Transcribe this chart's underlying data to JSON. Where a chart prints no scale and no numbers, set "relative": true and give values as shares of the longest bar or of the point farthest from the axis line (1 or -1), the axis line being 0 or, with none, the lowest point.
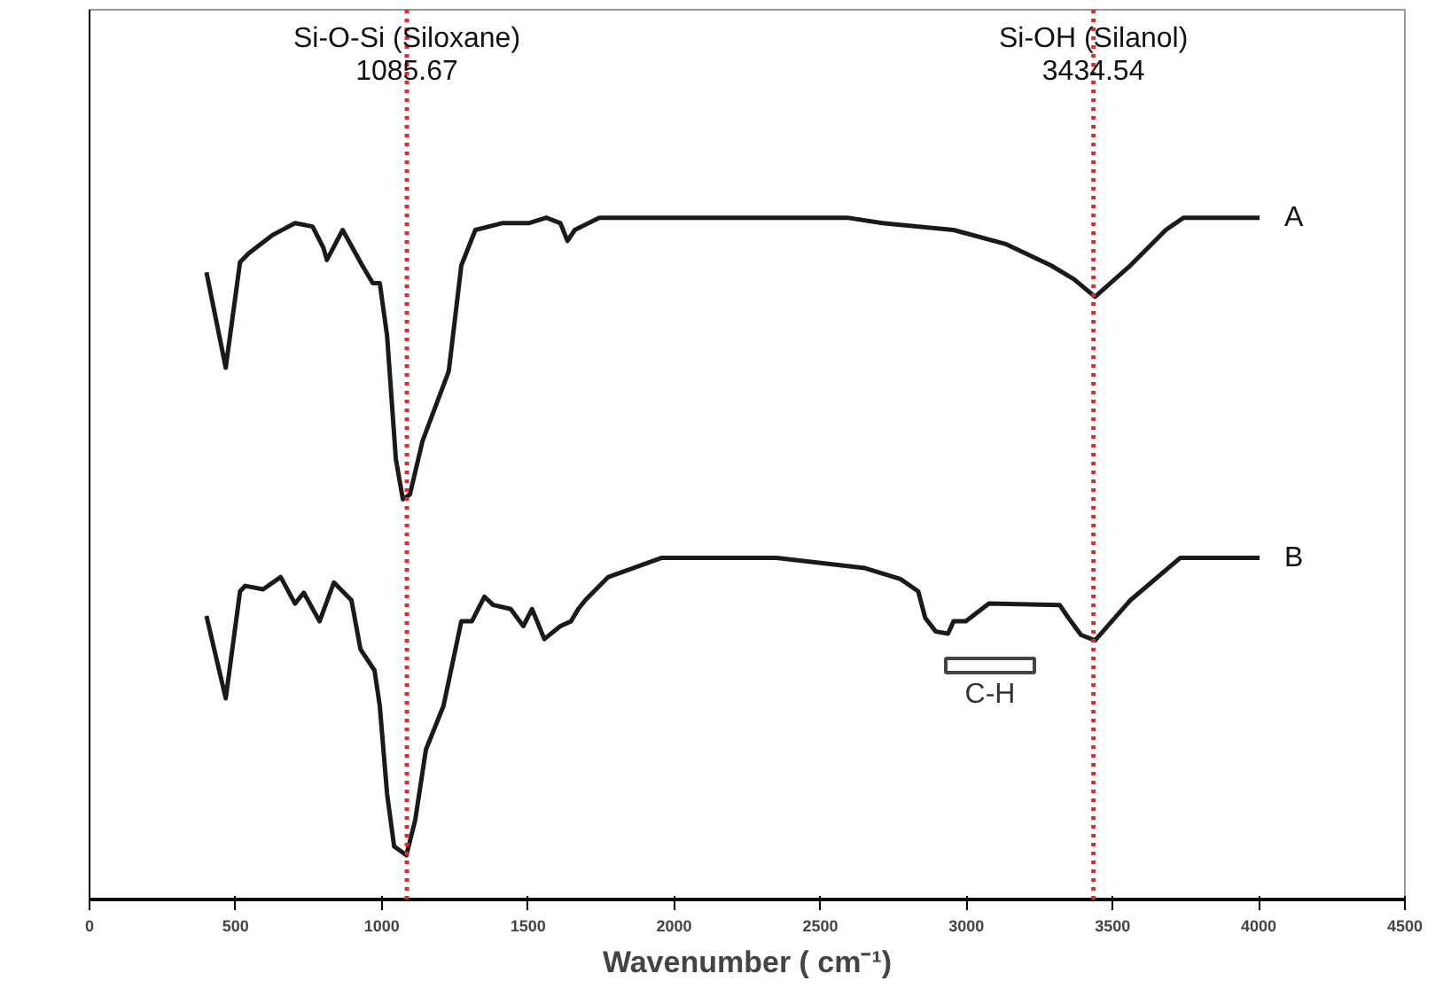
{
  "chart_data": {
    "type": "line",
    "relative": true,
    "xlabel": "Wavenumber ( cm⁻¹)",
    "xlim": [
      0,
      4500
    ],
    "xticks": [
      0,
      500,
      1000,
      1500,
      2000,
      2500,
      3000,
      3500,
      4000,
      4500
    ],
    "grid": false,
    "legend": false,
    "marker": "none",
    "line_style": "solid",
    "series": [
      {
        "name": "A",
        "color": "#1a1a1a",
        "x": [
          400,
          466,
          515,
          545,
          624,
          703,
          763,
          800,
          812,
          866,
          933,
          969,
          993,
          1018,
          1048,
          1072,
          1096,
          1139,
          1229,
          1272,
          1320,
          1411,
          1502,
          1563,
          1611,
          1635,
          1660,
          1744,
          2592,
          2713,
          2956,
          3137,
          3289,
          3367,
          3440,
          3561,
          3682,
          3743,
          4003
        ],
        "values": [
          0.92,
          0.78,
          0.935,
          0.948,
          0.974,
          0.992,
          0.987,
          0.956,
          0.938,
          0.982,
          0.93,
          0.904,
          0.904,
          0.827,
          0.646,
          0.587,
          0.594,
          0.672,
          0.775,
          0.93,
          0.982,
          0.992,
          0.992,
          1.0,
          0.992,
          0.966,
          0.982,
          1.0,
          1.0,
          0.992,
          0.982,
          0.961,
          0.93,
          0.91,
          0.884,
          0.93,
          0.982,
          1.0,
          1.0
        ]
      },
      {
        "name": "B",
        "color": "#1a1a1a",
        "x": [
          400,
          466,
          515,
          533,
          594,
          654,
          703,
          733,
          787,
          836,
          896,
          927,
          975,
          993,
          1018,
          1042,
          1084,
          1114,
          1151,
          1211,
          1272,
          1308,
          1351,
          1381,
          1441,
          1484,
          1514,
          1556,
          1611,
          1647,
          1672,
          1696,
          1775,
          1956,
          2350,
          2653,
          2774,
          2835,
          2859,
          2895,
          2937,
          2956,
          2998,
          3077,
          3319,
          3349,
          3392,
          3440,
          3561,
          3731,
          4003
        ],
        "values": [
          0.416,
          0.295,
          0.452,
          0.46,
          0.455,
          0.473,
          0.434,
          0.45,
          0.408,
          0.465,
          0.439,
          0.367,
          0.336,
          0.284,
          0.155,
          0.078,
          0.065,
          0.116,
          0.22,
          0.284,
          0.408,
          0.408,
          0.444,
          0.432,
          0.426,
          0.401,
          0.426,
          0.382,
          0.401,
          0.408,
          0.426,
          0.439,
          0.473,
          0.501,
          0.501,
          0.486,
          0.47,
          0.452,
          0.413,
          0.393,
          0.39,
          0.408,
          0.408,
          0.434,
          0.432,
          0.413,
          0.388,
          0.38,
          0.439,
          0.501,
          0.501
        ]
      }
    ],
    "ref_lines": [
      {
        "axis": "x",
        "value": 1085.67,
        "label": "Si-O-Si (Siloxane)\n1085.67",
        "color": "#e8272a",
        "line_style": "dotted"
      },
      {
        "axis": "x",
        "value": 3434.54,
        "label": "Si-OH (Silanol)\n3434.54",
        "color": "#e8272a",
        "line_style": "dotted"
      }
    ],
    "annotations": [
      "C-H"
    ]
  }
}
